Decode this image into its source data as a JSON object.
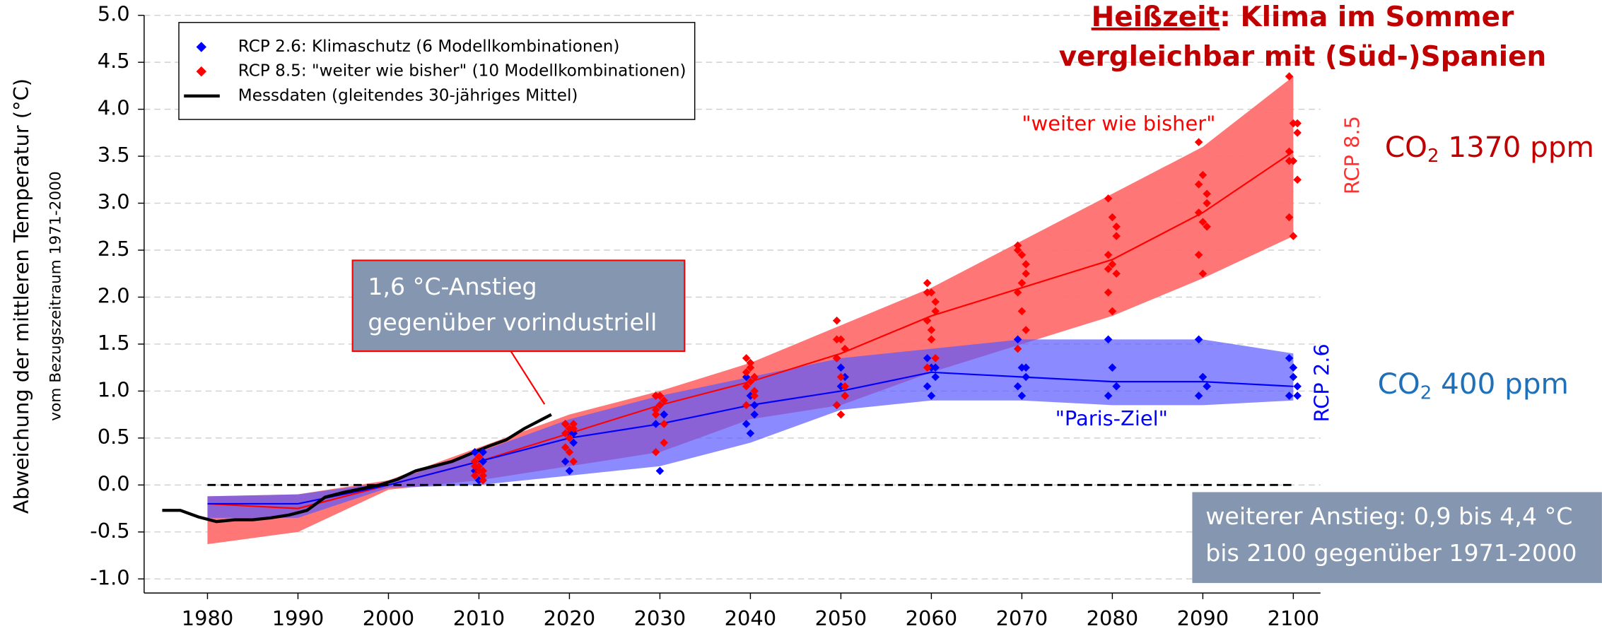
{
  "chart_data": {
    "type": "line",
    "title_1": "Heißzeit",
    "title_1b": ": Klima im Sommer",
    "title_2": "vergleichbar mit (Süd-)Spanien",
    "ylabel": "Abweichung der mittleren Temperatur (°C)",
    "ylabel2": "vom Bezugszeitraum 1971-2000",
    "label_high": "\"weiter wie bisher\"",
    "label_low": "\"Paris-Ziel\"",
    "rcp_high": "RCP 8.5",
    "rcp_low": "RCP 2.6",
    "co2_high": [
      "CO",
      "2",
      " 1370 ppm"
    ],
    "co2_low": [
      "CO",
      "2",
      " 400 ppm"
    ],
    "box_1": [
      "1,6 °C-Anstieg",
      "gegenüber vorindustriell"
    ],
    "box_2": [
      "weiterer Anstieg: 0,9 bis 4,4 °C",
      "bis 2100 gegenüber 1971-2000"
    ],
    "xlim": [
      1973,
      2103
    ],
    "xticks": [
      1980,
      1990,
      2000,
      2010,
      2020,
      2030,
      2040,
      2050,
      2060,
      2070,
      2080,
      2090,
      2100
    ],
    "ylim": [
      -1.15,
      5.0
    ],
    "yticks": [
      {
        "value": -1.0,
        "label": "-1.0"
      },
      -0.5,
      {
        "value": 0.0,
        "label": "0.0"
      },
      0.5,
      {
        "value": 1.0,
        "label": "1.0"
      },
      1.5,
      {
        "value": 2.0,
        "label": "2.0"
      },
      2.5,
      {
        "value": 3.0,
        "label": "3.0"
      },
      3.5,
      {
        "value": 4.0,
        "label": "4.0"
      },
      4.5,
      {
        "value": 5.0,
        "label": "5.0"
      }
    ],
    "grid": true,
    "hline": 0,
    "legend": "upper left",
    "bands": [
      {
        "color": "#ff6f6f",
        "line_color": "#ff0000",
        "x": [
          1980,
          1990,
          2000,
          2010,
          2020,
          2030,
          2040,
          2050,
          2060,
          2070,
          2080,
          2090,
          2100
        ],
        "lower": [
          -0.63,
          -0.5,
          -0.05,
          0.05,
          0.2,
          0.35,
          0.7,
          0.85,
          1.2,
          1.5,
          1.8,
          2.2,
          2.65
        ],
        "upper": [
          -0.12,
          -0.1,
          0.05,
          0.4,
          0.75,
          1.0,
          1.3,
          1.7,
          2.1,
          2.6,
          3.1,
          3.6,
          4.35
        ],
        "mean": [
          -0.2,
          -0.25,
          0.0,
          0.25,
          0.55,
          0.85,
          1.1,
          1.4,
          1.8,
          2.1,
          2.4,
          2.9,
          3.55
        ]
      },
      {
        "color": "#5a5aff",
        "line_color": "#0000ff",
        "x": [
          1980,
          1990,
          2000,
          2010,
          2020,
          2030,
          2040,
          2050,
          2060,
          2070,
          2080,
          2090,
          2100
        ],
        "lower": [
          -0.35,
          -0.35,
          -0.03,
          0.0,
          0.1,
          0.2,
          0.45,
          0.8,
          0.9,
          0.9,
          0.85,
          0.85,
          0.9
        ],
        "upper": [
          -0.12,
          -0.1,
          0.03,
          0.35,
          0.7,
          0.95,
          1.15,
          1.35,
          1.45,
          1.55,
          1.55,
          1.55,
          1.4
        ],
        "mean": [
          -0.2,
          -0.2,
          0.0,
          0.25,
          0.5,
          0.65,
          0.85,
          1.0,
          1.2,
          1.15,
          1.1,
          1.1,
          1.05
        ]
      }
    ],
    "series": [
      {
        "name": "RCP 2.6: Klimaschutz (6 Modellkombinationen)",
        "type": "scatter",
        "color": "#0000ff",
        "x": [
          2010,
          2020,
          2030,
          2040,
          2050,
          2060,
          2070,
          2080,
          2090,
          2100
        ],
        "values": [
          [
            0.35,
            0.3,
            0.25,
            0.15,
            0.05,
            0.35
          ],
          [
            0.65,
            0.55,
            0.45,
            0.25,
            0.15,
            0.55
          ],
          [
            0.95,
            0.85,
            0.75,
            0.65,
            0.15,
            0.75
          ],
          [
            1.15,
            0.95,
            0.75,
            0.65,
            0.55,
            0.85
          ],
          [
            1.35,
            1.25,
            0.95,
            0.85,
            1.05,
            1.15
          ],
          [
            1.35,
            1.25,
            1.15,
            1.05,
            0.95,
            1.25
          ],
          [
            1.55,
            1.25,
            1.15,
            1.05,
            0.95,
            1.25
          ],
          [
            1.55,
            1.25,
            1.05,
            0.95,
            1.25,
            1.05
          ],
          [
            1.55,
            1.15,
            1.05,
            0.95,
            1.15,
            1.05
          ],
          [
            1.35,
            1.25,
            1.05,
            0.95,
            1.15,
            0.95
          ]
        ]
      },
      {
        "name": "RCP 8.5: \"weiter wie bisher\" (10 Modellkombinationen)",
        "type": "scatter",
        "color": "#ff0000",
        "x": [
          2010,
          2020,
          2030,
          2040,
          2050,
          2060,
          2070,
          2080,
          2090,
          2100
        ],
        "values": [
          [
            0.25,
            0.2,
            0.15,
            0.1,
            0.3,
            0.05,
            0.2,
            0.15,
            0.1,
            0.25
          ],
          [
            0.65,
            0.6,
            0.65,
            0.55,
            0.5,
            0.6,
            0.4,
            0.35,
            0.25,
            0.65
          ],
          [
            0.95,
            0.85,
            0.9,
            0.75,
            0.85,
            0.45,
            0.35,
            0.95,
            0.65,
            0.8
          ],
          [
            1.35,
            1.25,
            1.15,
            1.05,
            1.1,
            0.95,
            0.85,
            1.3,
            1.0,
            1.2
          ],
          [
            1.75,
            1.55,
            1.45,
            1.35,
            1.15,
            0.95,
            0.85,
            0.75,
            1.05,
            1.55
          ],
          [
            2.15,
            2.05,
            1.95,
            1.75,
            1.55,
            1.35,
            1.25,
            1.65,
            1.85,
            2.05
          ],
          [
            2.55,
            2.45,
            2.35,
            2.05,
            1.85,
            1.65,
            1.45,
            2.15,
            2.25,
            2.5
          ],
          [
            3.05,
            2.85,
            2.65,
            2.45,
            2.35,
            2.25,
            2.05,
            1.85,
            2.75,
            2.3
          ],
          [
            3.65,
            3.3,
            3.1,
            2.9,
            2.8,
            2.75,
            2.45,
            2.25,
            3.0,
            3.2
          ],
          [
            4.35,
            3.85,
            3.75,
            3.55,
            3.45,
            3.25,
            2.85,
            2.65,
            3.85,
            3.45
          ]
        ]
      },
      {
        "name": "Messdaten (gleitendes 30-jähriges Mittel)",
        "type": "line",
        "color": "#000000",
        "x": [
          1975,
          1977,
          1979,
          1981,
          1983,
          1985,
          1987,
          1989,
          1991,
          1993,
          1995,
          1997,
          1999,
          2001,
          2003,
          2005,
          2007,
          2009,
          2011,
          2013,
          2015,
          2017,
          2018
        ],
        "values": [
          -0.27,
          -0.27,
          -0.34,
          -0.39,
          -0.37,
          -0.37,
          -0.35,
          -0.32,
          -0.27,
          -0.13,
          -0.08,
          -0.04,
          0.0,
          0.06,
          0.15,
          0.2,
          0.25,
          0.33,
          0.41,
          0.48,
          0.6,
          0.7,
          0.75
        ]
      }
    ]
  }
}
